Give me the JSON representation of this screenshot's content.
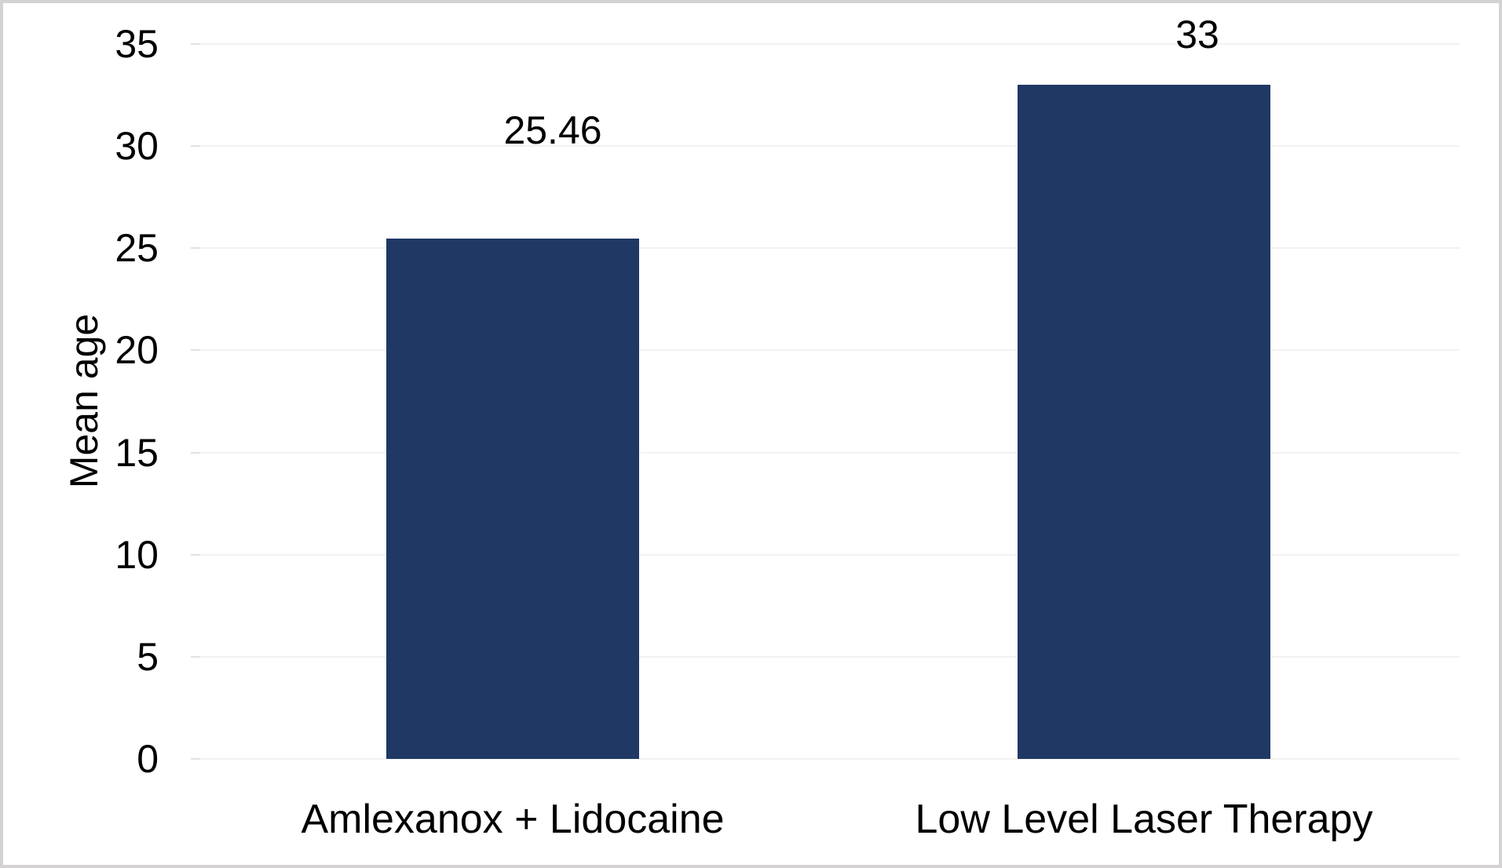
{
  "chart_data": {
    "type": "bar",
    "categories": [
      "Amlexanox + Lidocaine",
      "Low Level Laser Therapy"
    ],
    "values": [
      25.46,
      33
    ],
    "data_labels": [
      "25.46",
      "33"
    ],
    "title": "",
    "xlabel": "",
    "ylabel": "Mean age",
    "ylim": [
      0,
      35
    ],
    "yticks": [
      35,
      30,
      25,
      20,
      15,
      10,
      5,
      0
    ],
    "grid": "horizontal",
    "legend": "none",
    "colors": {
      "bar": "#1f3864",
      "gridline": "#f2f2f2",
      "tick_nub": "#e2e2e2",
      "text": "#000000",
      "frame_border": "#d4d2d2",
      "background": "#ffffff"
    }
  }
}
